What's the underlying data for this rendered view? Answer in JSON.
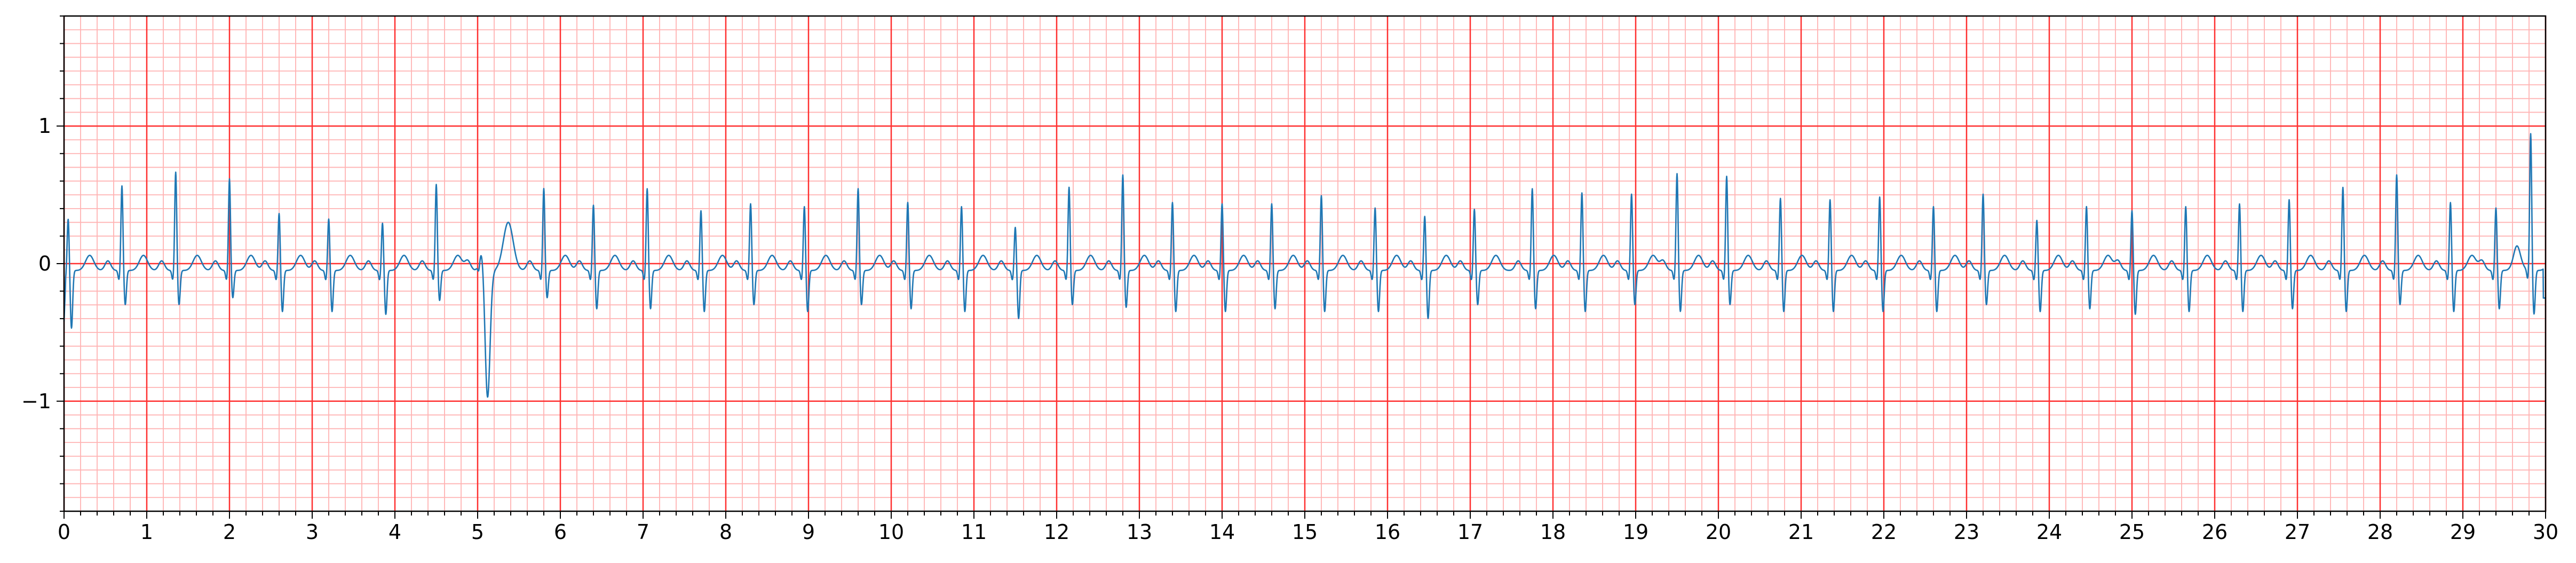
{
  "chart_data": {
    "type": "line",
    "title": "",
    "xlabel": "",
    "ylabel": "",
    "xlim": [
      0,
      30
    ],
    "ylim": [
      -1.8,
      1.8
    ],
    "x_ticks": [
      0,
      1,
      2,
      3,
      4,
      5,
      6,
      7,
      8,
      9,
      10,
      11,
      12,
      13,
      14,
      15,
      16,
      17,
      18,
      19,
      20,
      21,
      22,
      23,
      24,
      25,
      26,
      27,
      28,
      29,
      30
    ],
    "x_tick_labels": [
      "0",
      "1",
      "2",
      "3",
      "4",
      "5",
      "6",
      "7",
      "8",
      "9",
      "10",
      "11",
      "12",
      "13",
      "14",
      "15",
      "16",
      "17",
      "18",
      "19",
      "20",
      "21",
      "22",
      "23",
      "24",
      "25",
      "26",
      "27",
      "28",
      "29",
      "30"
    ],
    "y_ticks": [
      -1,
      0,
      1
    ],
    "y_tick_labels": [
      "−1",
      "0",
      "1"
    ],
    "grid": "ecg-paper",
    "colors": {
      "trace": "#1f77b4",
      "major_grid": "#ff3030",
      "minor_grid": "#ffb3b3",
      "axes": "#000000"
    },
    "series": [
      {
        "r_peak_times_s": [
          0.05,
          0.7,
          1.35,
          2.0,
          2.6,
          3.2,
          3.85,
          4.5,
          5.05,
          5.8,
          6.4,
          7.05,
          7.7,
          8.3,
          8.95,
          9.6,
          10.2,
          10.85,
          11.5,
          12.15,
          12.8,
          13.4,
          14.0,
          14.6,
          15.2,
          15.85,
          16.45,
          17.05,
          17.75,
          18.35,
          18.95,
          19.5,
          20.1,
          20.75,
          21.35,
          21.95,
          22.6,
          23.2,
          23.85,
          24.45,
          25.0,
          25.65,
          26.3,
          26.9,
          27.55,
          28.2,
          28.85,
          29.4,
          29.82
        ],
        "r_peak_amplitudes_mV": [
          0.38,
          0.62,
          0.72,
          0.67,
          0.42,
          0.38,
          0.35,
          0.63,
          0.15,
          0.6,
          0.48,
          0.6,
          0.44,
          0.49,
          0.47,
          0.6,
          0.5,
          0.47,
          0.32,
          0.61,
          0.7,
          0.5,
          0.49,
          0.49,
          0.55,
          0.46,
          0.4,
          0.45,
          0.6,
          0.57,
          0.56,
          0.71,
          0.69,
          0.53,
          0.52,
          0.54,
          0.47,
          0.56,
          0.37,
          0.47,
          0.44,
          0.47,
          0.49,
          0.52,
          0.61,
          0.7,
          0.5,
          0.46,
          1.0
        ],
        "s_wave_amplitudes_mV": [
          -0.42,
          -0.25,
          -0.25,
          -0.2,
          -0.3,
          -0.3,
          -0.32,
          -0.22,
          -0.93,
          -0.2,
          -0.28,
          -0.28,
          -0.3,
          -0.25,
          -0.3,
          -0.25,
          -0.28,
          -0.3,
          -0.35,
          -0.25,
          -0.27,
          -0.3,
          -0.3,
          -0.28,
          -0.3,
          -0.3,
          -0.35,
          -0.25,
          -0.28,
          -0.3,
          -0.25,
          -0.3,
          -0.25,
          -0.3,
          -0.3,
          -0.3,
          -0.3,
          -0.25,
          -0.3,
          -0.28,
          -0.32,
          -0.3,
          -0.3,
          -0.28,
          -0.3,
          -0.25,
          -0.3,
          -0.28,
          -0.32
        ],
        "end_value_mV": -0.25
      }
    ]
  }
}
